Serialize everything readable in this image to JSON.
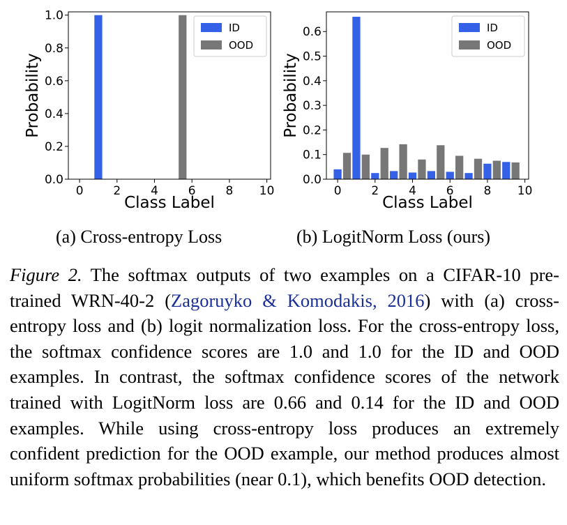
{
  "chart_data": [
    {
      "type": "bar",
      "title": "",
      "xlabel": "Class Label",
      "ylabel": "Probability",
      "xlim": [
        -0.6,
        10.2
      ],
      "ylim": [
        0,
        1.02
      ],
      "xticks": [
        0,
        2,
        4,
        6,
        8,
        10
      ],
      "yticks": [
        0.0,
        0.2,
        0.4,
        0.6,
        0.8,
        1.0
      ],
      "ytick_labels": [
        "0.0",
        "0.2",
        "0.4",
        "0.6",
        "0.8",
        "1.0"
      ],
      "categories": [
        0,
        1,
        2,
        3,
        4,
        5,
        6,
        7,
        8,
        9
      ],
      "series": [
        {
          "name": "ID",
          "color": "#3561e6",
          "offset": 0,
          "values": [
            0,
            1.0,
            0,
            0,
            0,
            0,
            0,
            0,
            0,
            0
          ]
        },
        {
          "name": "OOD",
          "color": "#777777",
          "offset": 0.5,
          "values": [
            0,
            0,
            0,
            0,
            0,
            1.0,
            0,
            0,
            0,
            0
          ]
        }
      ],
      "legend": "top-right"
    },
    {
      "type": "bar",
      "title": "",
      "xlabel": "Class Label",
      "ylabel": "Probability",
      "xlim": [
        -0.6,
        10.2
      ],
      "ylim": [
        0,
        0.68
      ],
      "xticks": [
        0,
        2,
        4,
        6,
        8,
        10
      ],
      "yticks": [
        0.0,
        0.1,
        0.2,
        0.3,
        0.4,
        0.5,
        0.6
      ],
      "ytick_labels": [
        "0.0",
        "0.1",
        "0.2",
        "0.3",
        "0.4",
        "0.5",
        "0.6"
      ],
      "categories": [
        0,
        1,
        2,
        3,
        4,
        5,
        6,
        7,
        8,
        9
      ],
      "series": [
        {
          "name": "ID",
          "color": "#3561e6",
          "offset": 0,
          "values": [
            0.04,
            0.66,
            0.025,
            0.033,
            0.027,
            0.033,
            0.03,
            0.025,
            0.063,
            0.07
          ]
        },
        {
          "name": "OOD",
          "color": "#777777",
          "offset": 0.5,
          "values": [
            0.107,
            0.1,
            0.127,
            0.142,
            0.08,
            0.138,
            0.095,
            0.083,
            0.075,
            0.068
          ]
        }
      ],
      "legend": "top-right"
    }
  ],
  "subcaptions": {
    "a": "(a) Cross-entropy Loss",
    "b": "(b) LogitNorm Loss (ours)"
  },
  "caption": {
    "figure_label": "Figure 2.",
    "text_1": " The softmax outputs of two examples on a CIFAR-10 pre-trained WRN-40-2 (",
    "citation": "Zagoruyko & Komodakis, 2016",
    "text_2": ") with (a) cross-entropy loss and (b) logit normalization loss. For the cross-entropy loss, the softmax confidence scores are 1.0 and 1.0 for the ID and OOD examples. In contrast, the softmax confidence scores of the network trained with LogitNorm loss are 0.66 and 0.14 for the ID and OOD examples. While using cross-entropy loss produces an extremely confident prediction for the OOD example, our method produces almost uniform softmax probabilities (near 0.1), which benefits OOD detection."
  }
}
